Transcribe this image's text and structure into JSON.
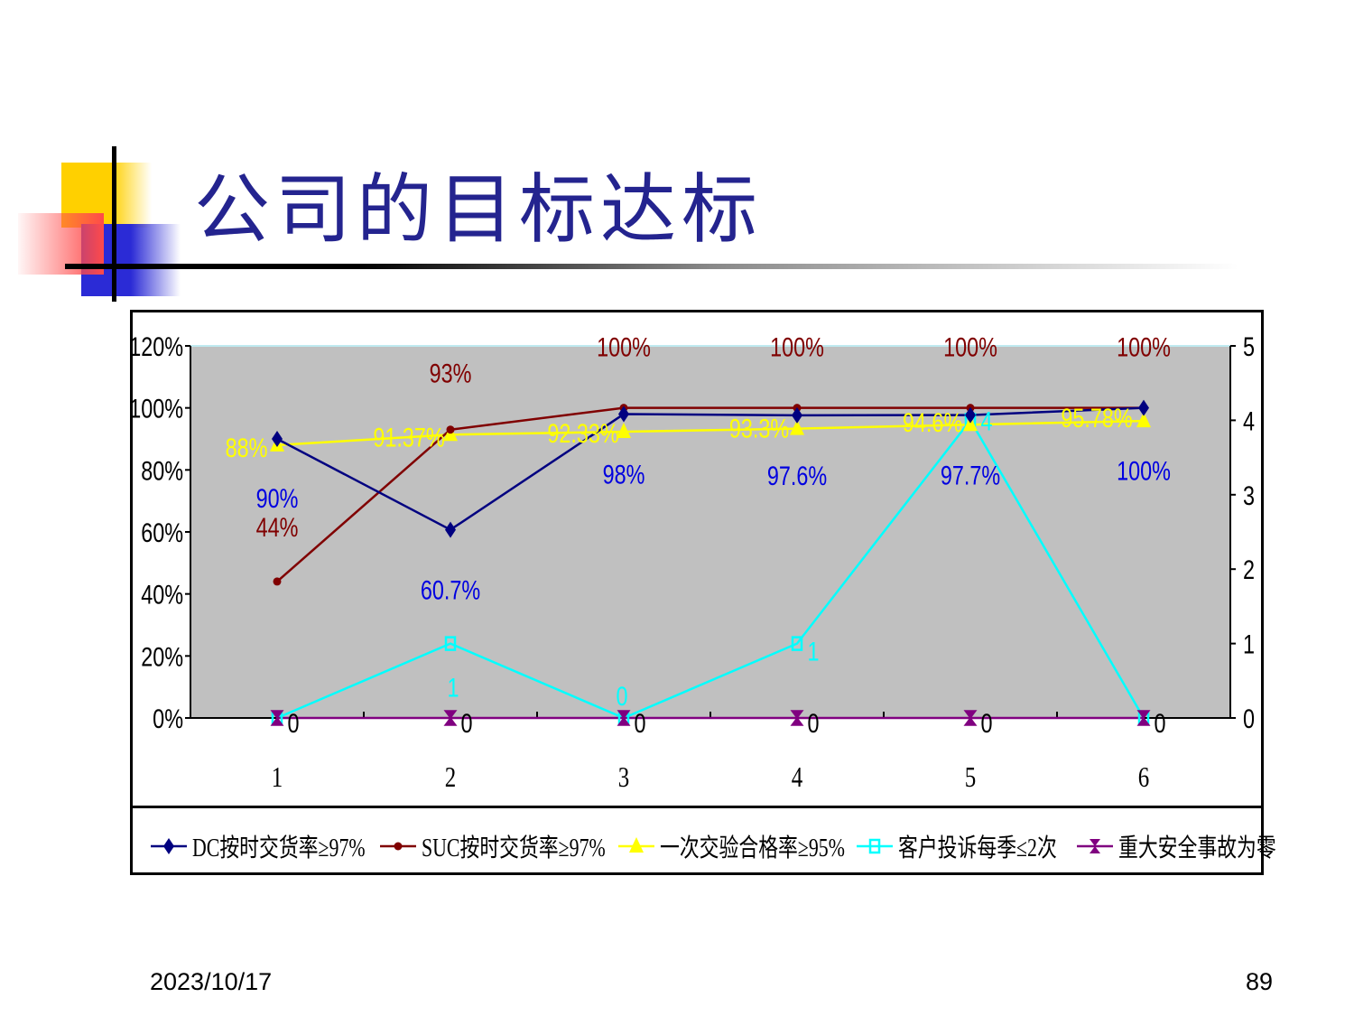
{
  "slide": {
    "title": "公司的目标达标",
    "date": "2023/10/17",
    "page_number": "89"
  },
  "chart_data": {
    "type": "line",
    "categories": [
      "1",
      "2",
      "3",
      "4",
      "5",
      "6"
    ],
    "y_left": {
      "min": 0,
      "max": 120,
      "step": 20,
      "tick_labels": [
        "0%",
        "20%",
        "40%",
        "60%",
        "80%",
        "100%",
        "120%"
      ]
    },
    "y_right": {
      "min": 0,
      "max": 5,
      "step": 1,
      "tick_labels": [
        "0",
        "1",
        "2",
        "3",
        "4",
        "5"
      ]
    },
    "plot_background": "#c0c0c0",
    "legend_position": "bottom",
    "series": [
      {
        "name": "DC按时交货率≥97%",
        "axis": "left",
        "color": "#000080",
        "marker": "diamond",
        "values": [
          90,
          60.7,
          98,
          97.6,
          97.7,
          100
        ],
        "labels": [
          "90%",
          "60.7%",
          "98%",
          "97.6%",
          "97.7%",
          "100%"
        ],
        "label_color": "#0000e0"
      },
      {
        "name": "SUC按时交货率≥97%",
        "axis": "left",
        "color": "#800000",
        "marker": "circle",
        "values": [
          44,
          93,
          100,
          100,
          100,
          100
        ],
        "labels": [
          "44%",
          "93%",
          "100%",
          "100%",
          "100%",
          "100%"
        ],
        "label_color": "#800000"
      },
      {
        "name": "一次交验合格率≥95%",
        "axis": "left",
        "color": "#ffff00",
        "marker": "triangle",
        "values": [
          88,
          91.37,
          92.33,
          93.3,
          94.6,
          95.78
        ],
        "labels": [
          "88%",
          "91.37%",
          "92.33%",
          "93.3%",
          "94.6%",
          "95.78%"
        ],
        "label_color": "#ffff00"
      },
      {
        "name": "客户投诉每季≤2次",
        "axis": "right",
        "color": "#00ffff",
        "marker": "square",
        "values": [
          0,
          1,
          0,
          1,
          4,
          0
        ],
        "labels": [
          "0",
          "1",
          "0",
          "1",
          "4",
          "0"
        ],
        "label_color": "#00ffff"
      },
      {
        "name": "重大安全事故为零",
        "axis": "right",
        "color": "#800080",
        "marker": "star",
        "values": [
          0,
          0,
          0,
          0,
          0,
          0
        ],
        "labels": [
          "0",
          "0",
          "0",
          "0",
          "0",
          "0"
        ],
        "label_color": "#000000"
      }
    ]
  }
}
